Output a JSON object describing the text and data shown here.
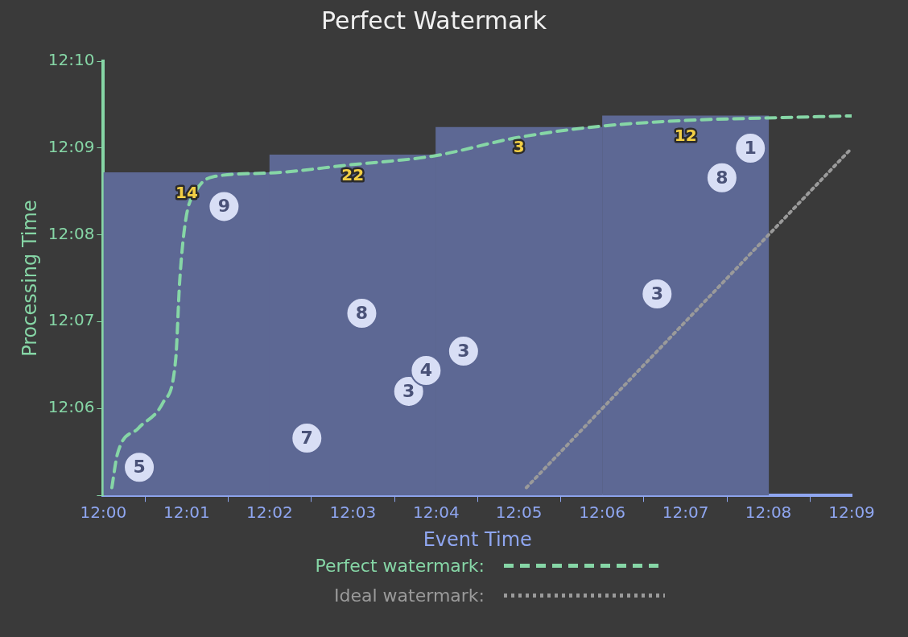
{
  "chart_data": {
    "type": "bar",
    "title": "Perfect Watermark",
    "xlabel": "Event Time",
    "ylabel": "Processing Time",
    "xlim": [
      12,
      12.15
    ],
    "ylim": [
      12.0833,
      12.1667
    ],
    "xticks": [
      {
        "value": 12,
        "label": "12:00"
      },
      {
        "value": 12.0167,
        "label": "12:01"
      },
      {
        "value": 12.0333,
        "label": "12:02"
      },
      {
        "value": 12.05,
        "label": "12:03"
      },
      {
        "value": 12.0667,
        "label": "12:04"
      },
      {
        "value": 12.0833,
        "label": "12:05"
      },
      {
        "value": 12.1,
        "label": "12:06"
      },
      {
        "value": 12.1167,
        "label": "12:07"
      },
      {
        "value": 12.1333,
        "label": "12:08"
      },
      {
        "value": 12.15,
        "label": "12:09"
      }
    ],
    "yticks": [
      {
        "value": 12.0833,
        "label": null
      },
      {
        "value": 12.1,
        "label": "12:06"
      },
      {
        "value": 12.1167,
        "label": "12:07"
      },
      {
        "value": 12.1333,
        "label": "12:08"
      },
      {
        "value": 12.15,
        "label": "12:09"
      },
      {
        "value": 12.1667,
        "label": "12:10"
      }
    ],
    "series": [
      {
        "color": "#5d6894",
        "x": [
          12.0167,
          12.05,
          12.0833,
          12.1167
        ],
        "base": [
          12.0833,
          12.0833,
          12.0833,
          12.0833
        ],
        "values": [
          0.062,
          0.0654,
          0.0707,
          0.0729
        ]
      },
      {
        "type": "scatter",
        "marker": "circle",
        "color": "#d8def5",
        "x": [
          12.0072,
          12.0242,
          12.0408,
          12.0518,
          12.0612,
          12.0647,
          12.0722,
          12.111,
          12.124,
          12.1297
        ],
        "values": [
          12.0887,
          12.1388,
          12.0943,
          12.1183,
          12.1033,
          12.1073,
          12.111,
          12.122,
          12.1443,
          12.15
        ]
      },
      {
        "type": "line",
        "name": "Perfect watermark:",
        "color": "#86d6a6",
        "line_style": "dashed",
        "x": [
          12.0017,
          12.0028,
          12.007,
          12.012,
          12.0145,
          12.0153,
          12.0165,
          12.0187,
          12.022,
          12.0328,
          12.0495,
          12.0662,
          12.0828,
          12.0995,
          12.1162,
          12.1328,
          12.15
        ],
        "values": [
          12.0848,
          12.0912,
          12.0962,
          12.1012,
          12.1095,
          12.1245,
          12.1362,
          12.142,
          12.1445,
          12.1452,
          12.1468,
          12.1485,
          12.152,
          12.1542,
          12.1553,
          12.1558,
          12.1562
        ]
      },
      {
        "type": "line",
        "name": "Ideal watermark:",
        "color": "#9a9a9a",
        "line_style": "dotted",
        "x": [
          12.0848,
          12.15
        ],
        "values": [
          12.0848,
          12.15
        ]
      }
    ],
    "annotations": [
      {
        "text": "5",
        "x": 12.0072,
        "y": 12.0887
      },
      {
        "text": "9",
        "x": 12.0242,
        "y": 12.1388
      },
      {
        "text": "7",
        "x": 12.0408,
        "y": 12.0943
      },
      {
        "text": "8",
        "x": 12.0518,
        "y": 12.1183
      },
      {
        "text": "3",
        "x": 12.0612,
        "y": 12.1033
      },
      {
        "text": "4",
        "x": 12.0647,
        "y": 12.1073
      },
      {
        "text": "3",
        "x": 12.0722,
        "y": 12.111
      },
      {
        "text": "3",
        "x": 12.111,
        "y": 12.122
      },
      {
        "text": "8",
        "x": 12.124,
        "y": 12.1443
      },
      {
        "text": "1",
        "x": 12.1297,
        "y": 12.15
      },
      {
        "text": "14",
        "x": 12.0167,
        "y": 12.1453
      },
      {
        "text": "22",
        "x": 12.05,
        "y": 12.1487
      },
      {
        "text": "3",
        "x": 12.0833,
        "y": 12.154
      },
      {
        "text": "12",
        "x": 12.1167,
        "y": 12.1562
      }
    ],
    "grid": false,
    "legend": "bottom"
  }
}
